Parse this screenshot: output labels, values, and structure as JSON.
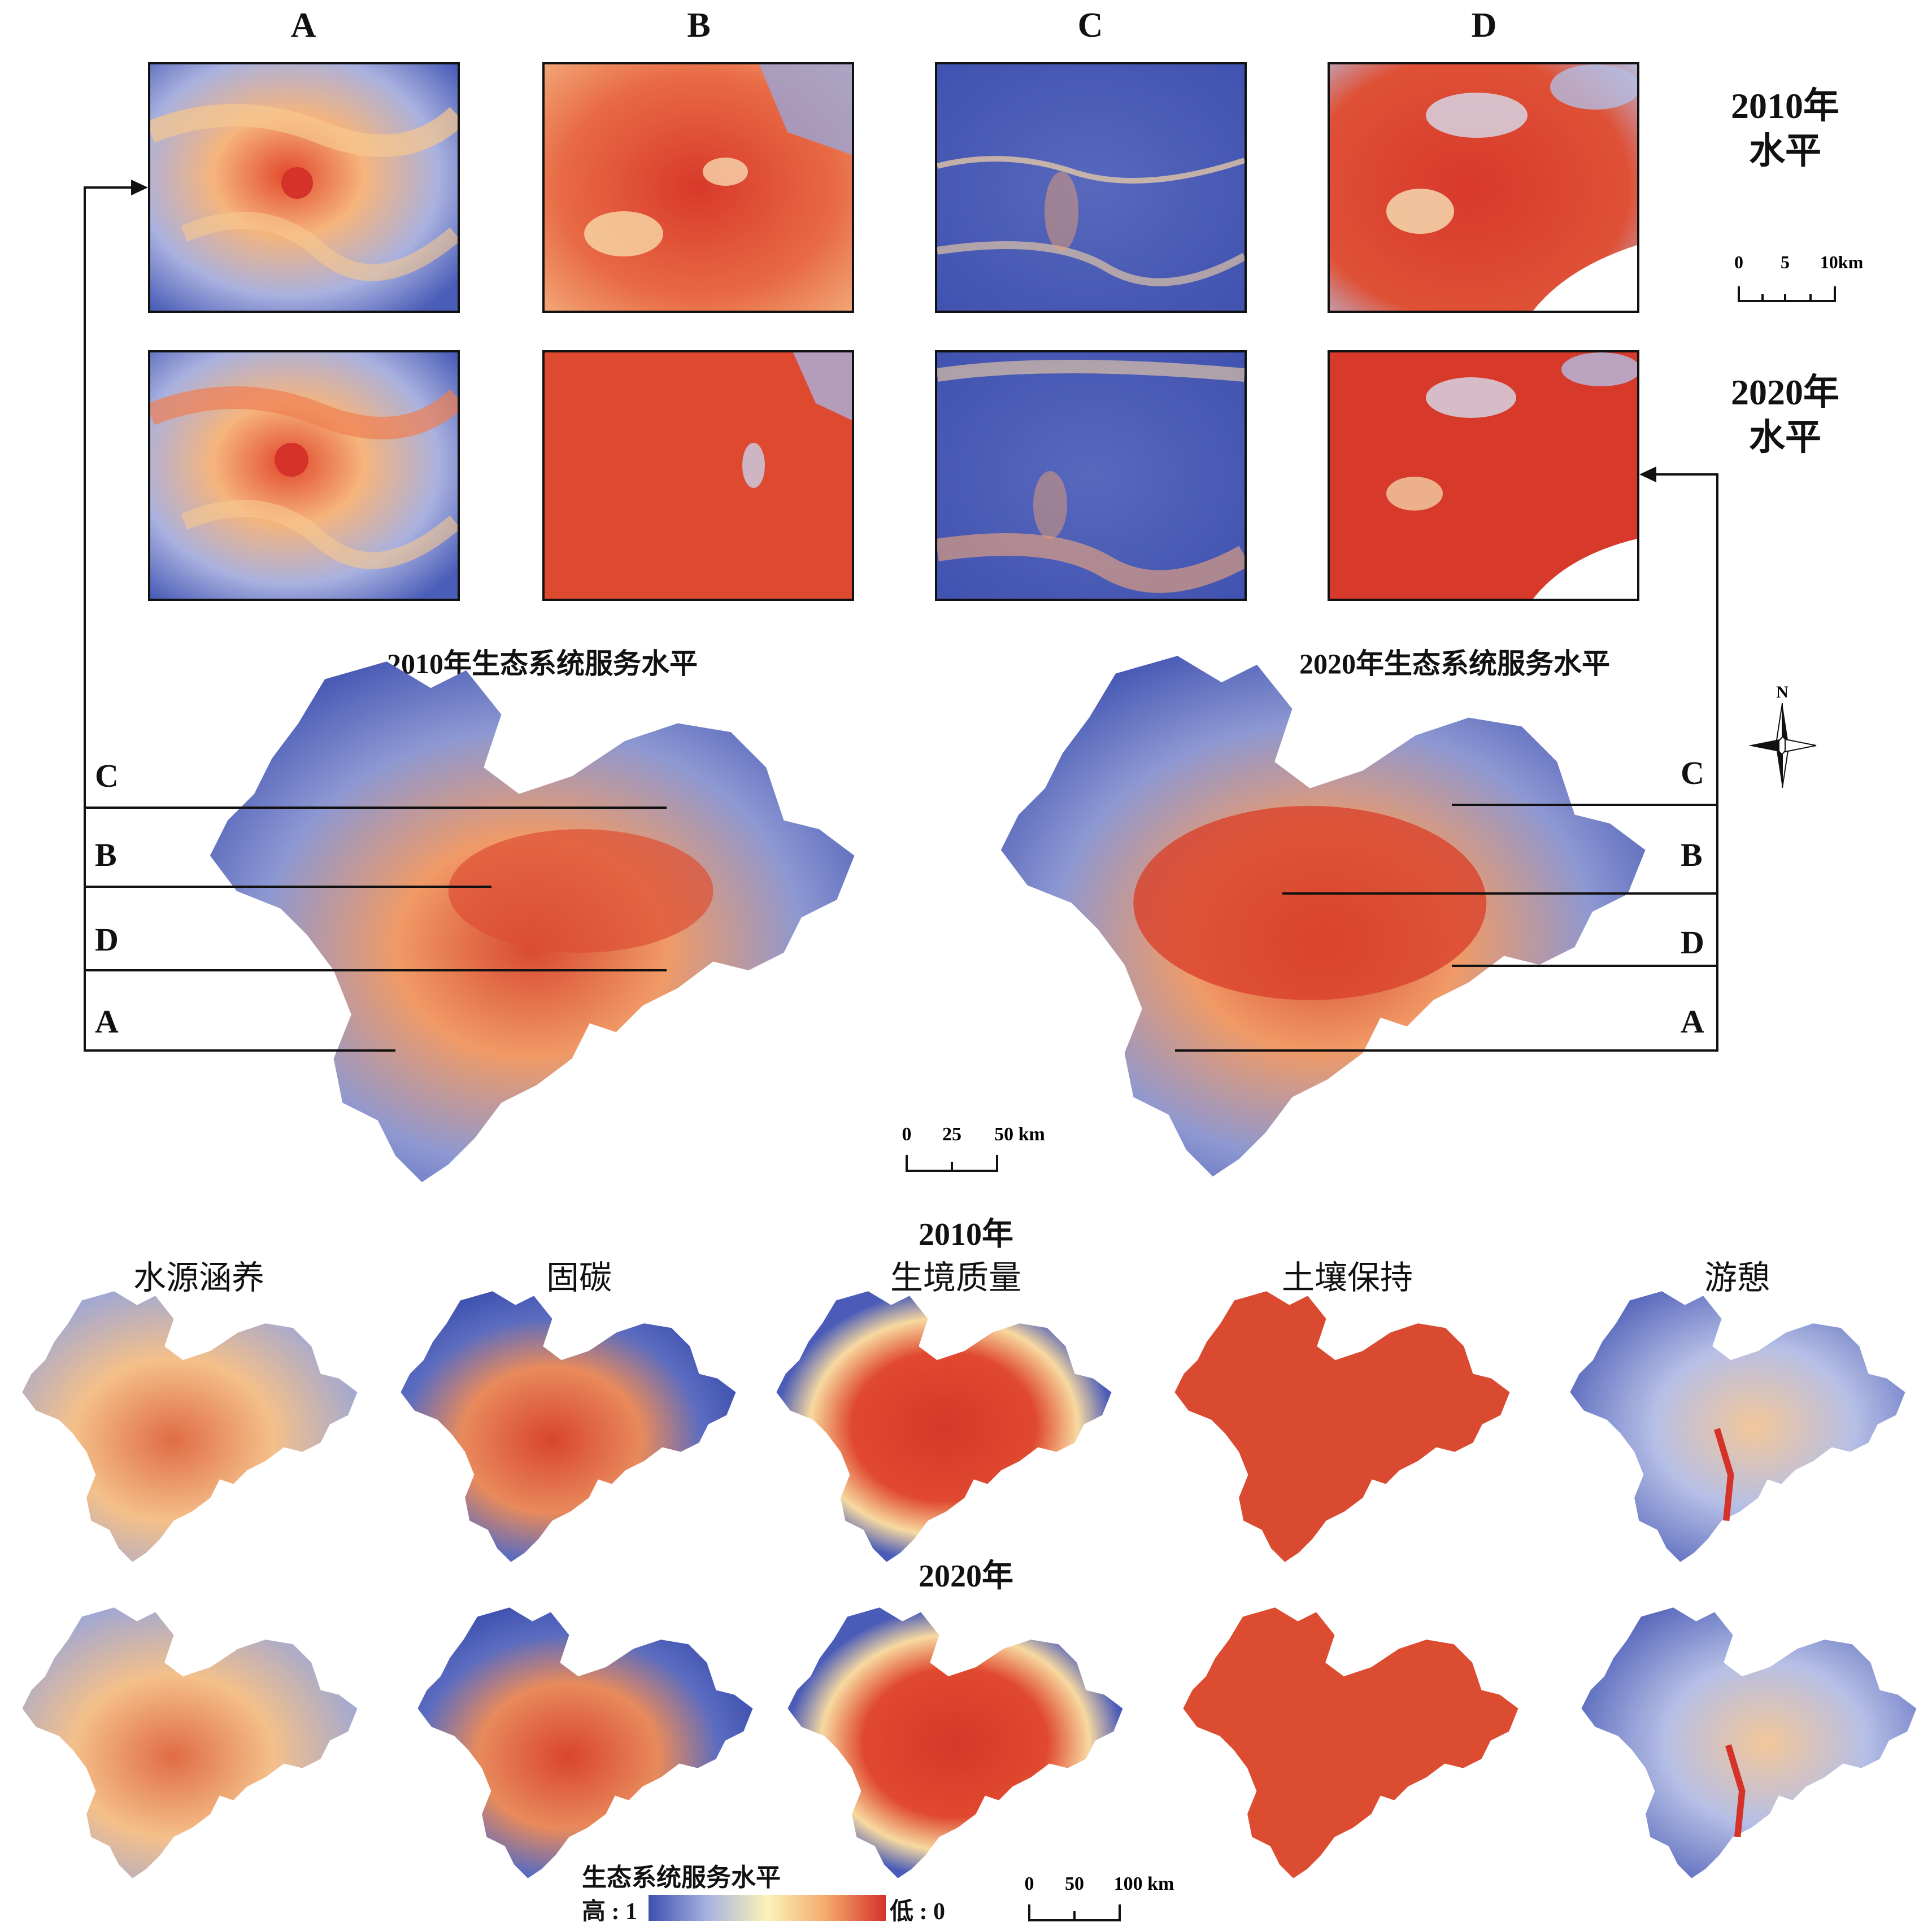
{
  "columns": [
    "A",
    "B",
    "C",
    "D"
  ],
  "inset_years": [
    "2010年",
    "2020年"
  ],
  "inset_level_label": "水平",
  "inset_scale": {
    "ticks": [
      "0",
      "5",
      "10km"
    ]
  },
  "map_titles": {
    "y2010": "2010年生态系统服务水平",
    "y2020": "2020年生态系统服务水平"
  },
  "band_labels_left": [
    "C",
    "B",
    "D",
    "A"
  ],
  "band_labels_right": [
    "C",
    "B",
    "D",
    "A"
  ],
  "north_label": "N",
  "main_scale": {
    "ticks": [
      "0",
      "25",
      "50 km"
    ]
  },
  "service_year_labels": [
    "2010年",
    "2020年"
  ],
  "services": [
    "水源涵养",
    "固碳",
    "生境质量",
    "土壤保持",
    "游憩"
  ],
  "legend": {
    "title": "生态系统服务水平",
    "high": "高 : 1",
    "low": "低 : 0"
  },
  "bottom_scale": {
    "ticks": [
      "0",
      "50",
      "100 km"
    ]
  },
  "colors": {
    "low_blue": "#4458b0",
    "mid_yellow": "#fbf0b0",
    "orange": "#f5a56c",
    "high_red": "#d9392a"
  }
}
